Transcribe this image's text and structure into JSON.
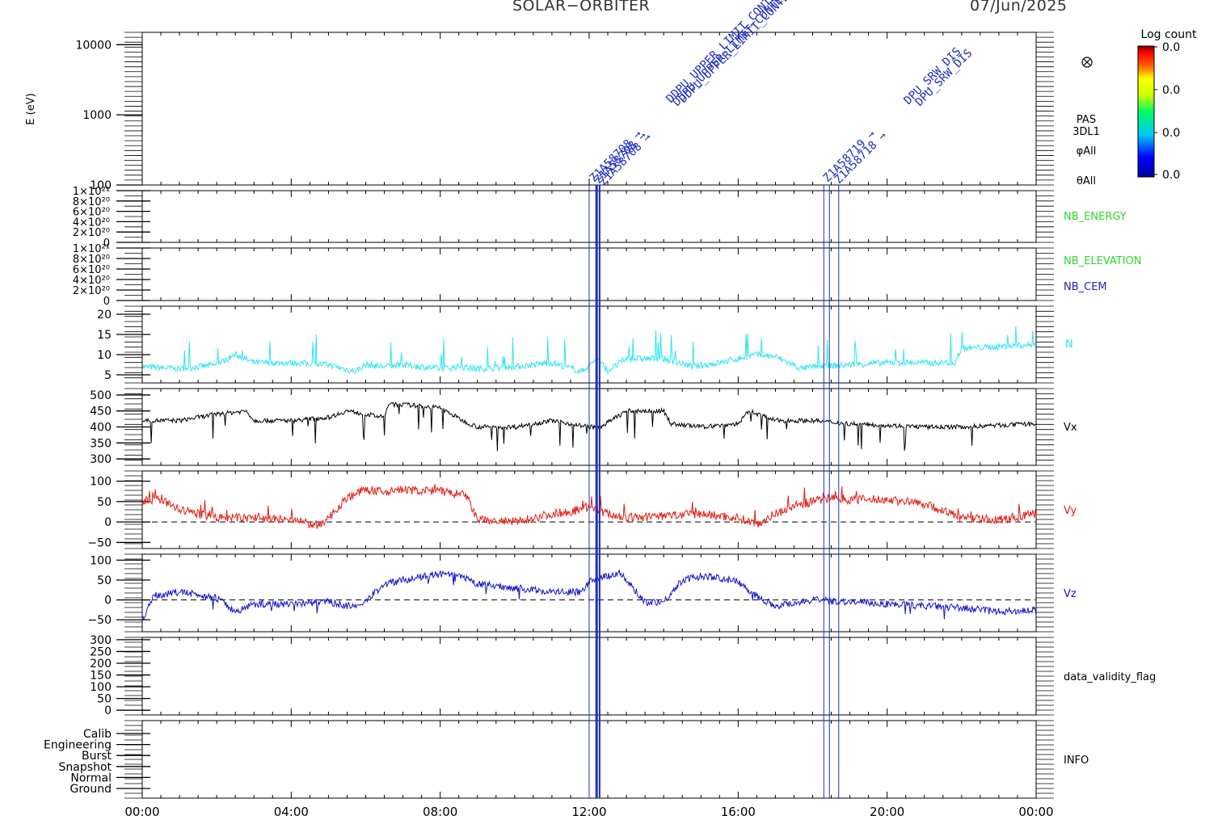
{
  "header": {
    "mission": "SOLAR−ORBITER",
    "date": "07/Jun/2025"
  },
  "colors": {
    "axis": "#000000",
    "event": "#1f2fbf",
    "N": "#2fe4ee",
    "Vx": "#000000",
    "Vy": "#e41b12",
    "Vz": "#1414cc",
    "nb_green": "#2fd62f",
    "nb_blue": "#2222bb"
  },
  "chart_data": {
    "type": "line",
    "x_axis": {
      "range": [
        "00:00",
        "24:00"
      ],
      "ticks": [
        "00:00",
        "04:00",
        "08:00",
        "12:00",
        "16:00",
        "20:00",
        "00:00"
      ]
    },
    "panels": [
      {
        "id": "spectrogram",
        "type": "heatmap",
        "ylabel": "E (eV)",
        "scale": "log",
        "ylim": [
          100,
          15000
        ],
        "ticks": [
          "10000",
          "1000",
          "100"
        ],
        "right_labels": [
          "PAS",
          "3DL1",
          "φAll",
          "θAll"
        ],
        "colorbar": {
          "title": "Log count",
          "ticks": [
            "0.0",
            "0.0",
            "0.0",
            "0.0"
          ]
        }
      },
      {
        "id": "nb-energy",
        "ylim": [
          0,
          1e+21
        ],
        "ticks": [
          "1×10²¹",
          "8×10²⁰",
          "6×10²⁰",
          "4×10²⁰",
          "2×10²⁰",
          "0"
        ],
        "series": [
          {
            "name": "NB_ENERGY",
            "values": []
          }
        ]
      },
      {
        "id": "nb-elevation",
        "ylim": [
          0,
          1e+21
        ],
        "ticks": [
          "1×10²¹",
          "8×10²⁰",
          "6×10²⁰",
          "4×10²⁰",
          "2×10²⁰",
          "0"
        ],
        "series": [
          {
            "name": "NB_ELEVATION",
            "values": []
          },
          {
            "name": "NB_CEM",
            "values": []
          }
        ]
      },
      {
        "id": "density",
        "ylim": [
          3,
          22
        ],
        "ticks": [
          "20",
          "15",
          "10",
          "5"
        ],
        "series": [
          {
            "name": "N",
            "x": [
              0,
              1,
              2,
              2.5,
              3,
              4,
              5,
              5.7,
              6,
              6.5,
              7,
              8,
              8.5,
              9,
              10,
              11,
              11.8,
              12.2,
              12.5,
              13,
              14,
              14.8,
              15.5,
              16,
              16.5,
              17,
              17.7,
              18,
              19,
              20,
              21,
              21.8,
              22,
              23,
              24
            ],
            "values": [
              7,
              6.5,
              7.5,
              10,
              8,
              8,
              7.5,
              5.8,
              7.5,
              7,
              7.5,
              6.5,
              7,
              6.5,
              7,
              8,
              5.8,
              9,
              6,
              9,
              9,
              7,
              8,
              9,
              10,
              9.5,
              6.5,
              7,
              7.5,
              8,
              8,
              8,
              11.5,
              12,
              12.5
            ]
          }
        ]
      },
      {
        "id": "vx",
        "ylim": [
          280,
          520
        ],
        "ticks": [
          "500",
          "450",
          "400",
          "350",
          "300"
        ],
        "series": [
          {
            "name": "Vx",
            "x": [
              0,
              1,
              2,
              2.8,
              3,
              4,
              5,
              5.5,
              6.5,
              6.6,
              7,
              8,
              8.6,
              9,
              10,
              11,
              12,
              12.3,
              13,
              14,
              14.2,
              15,
              16,
              16.3,
              17,
              18,
              19,
              20,
              21,
              22,
              23,
              24
            ],
            "values": [
              420,
              420,
              440,
              450,
              420,
              420,
              430,
              450,
              430,
              470,
              470,
              460,
              420,
              400,
              400,
              420,
              400,
              400,
              450,
              450,
              410,
              400,
              410,
              450,
              420,
              420,
              410,
              405,
              400,
              400,
              405,
              410
            ]
          }
        ]
      },
      {
        "id": "vy",
        "ylim": [
          -65,
          125
        ],
        "ticks": [
          "100",
          "50",
          "0",
          "−50"
        ],
        "series": [
          {
            "name": "Vy",
            "x": [
              0,
              0.5,
              1,
              2,
              3,
              4,
              4.8,
              5.5,
              6,
              6.6,
              6.7,
              8,
              8.7,
              9,
              10,
              11,
              11.8,
              12,
              12.3,
              13,
              14,
              15,
              16,
              16.5,
              17,
              17.5,
              18.5,
              19,
              20,
              21,
              22,
              23,
              24
            ],
            "values": [
              50,
              55,
              30,
              10,
              10,
              5,
              -10,
              60,
              80,
              70,
              80,
              75,
              65,
              5,
              0,
              20,
              30,
              40,
              25,
              10,
              15,
              20,
              10,
              -5,
              20,
              40,
              60,
              55,
              55,
              45,
              10,
              5,
              20
            ]
          }
        ]
      },
      {
        "id": "vz",
        "ylim": [
          -80,
          115
        ],
        "ticks": [
          "100",
          "50",
          "0",
          "−50"
        ],
        "series": [
          {
            "name": "Vz",
            "x": [
              0,
              0.3,
              1,
              2,
              2.5,
              3,
              4,
              5,
              5.8,
              6.5,
              7,
              8,
              8.5,
              9,
              10,
              11,
              11.8,
              12,
              12.8,
              13.5,
              14,
              14.5,
              15,
              15.5,
              16,
              16.5,
              17,
              18,
              19,
              20,
              21,
              22,
              23,
              24
            ],
            "values": [
              -50,
              10,
              20,
              5,
              -30,
              -10,
              -10,
              -5,
              -20,
              40,
              50,
              65,
              60,
              40,
              30,
              20,
              20,
              45,
              70,
              -5,
              -5,
              50,
              60,
              55,
              45,
              10,
              -15,
              0,
              -5,
              -10,
              -15,
              -20,
              -30,
              -25
            ]
          }
        ]
      },
      {
        "id": "validity",
        "ylim": [
          -20,
          310
        ],
        "ticks": [
          "300",
          "250",
          "200",
          "150",
          "100",
          "50",
          "0"
        ],
        "series": [
          {
            "name": "data_validity_flag",
            "values": []
          }
        ]
      },
      {
        "id": "info",
        "type": "table",
        "categories": [
          "Calib",
          "Engineering",
          "Burst",
          "Snapshot",
          "Normal",
          "Ground"
        ],
        "series": [
          {
            "name": "INFO",
            "values": []
          }
        ]
      }
    ],
    "events": {
      "group1_labels": [
        "Z1A58708",
        "Z1A58708",
        "Z1A58708",
        "DDPU_UPPER_LIMIT_CONTEXT_FRAME"
      ],
      "group2_labels": [
        "Z1A58719",
        "Z1A58718",
        "DPU_SRW_DIS"
      ]
    }
  }
}
